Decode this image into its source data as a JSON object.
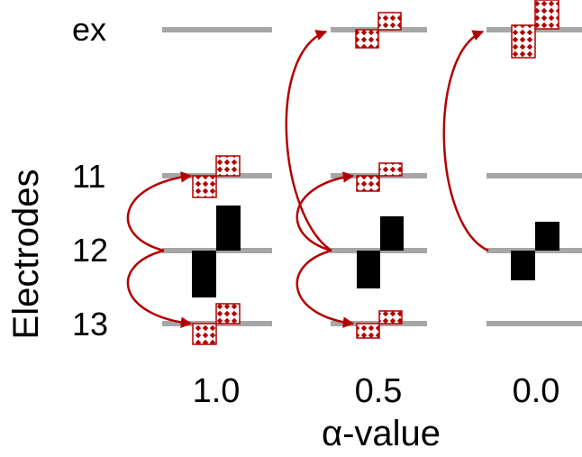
{
  "axis": {
    "y_label": "Electrodes",
    "x_label": "α-value"
  },
  "rows": [
    "ex",
    "11",
    "12",
    "13"
  ],
  "columns": [
    "1.0",
    "0.5",
    "0.0"
  ],
  "colors": {
    "line": "#a6a6a6",
    "accent": "#b30000",
    "block": "#000000",
    "pattern_bg": "#ffffff"
  }
}
